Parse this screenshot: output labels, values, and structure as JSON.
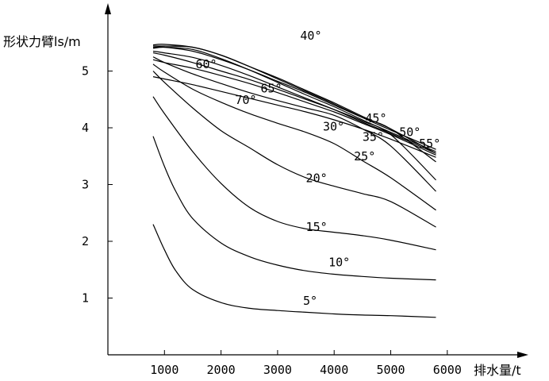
{
  "chart_data": {
    "type": "line",
    "xlabel": "排水量/t",
    "ylabel": "形状力臂ls/m",
    "xlim": [
      0,
      6600
    ],
    "ylim": [
      0,
      6.2
    ],
    "x_ticks": [
      "1000",
      "2000",
      "3000",
      "4000",
      "5000",
      "6000"
    ],
    "y_ticks": [
      "1",
      "2",
      "3",
      "4",
      "5"
    ],
    "grid": false,
    "series": [
      {
        "name": "5°",
        "x": [
          800,
          1000,
          1200,
          1500,
          2000,
          2500,
          3000,
          3500,
          4000,
          4500,
          5000,
          5800
        ],
        "y": [
          2.3,
          1.85,
          1.48,
          1.15,
          0.92,
          0.82,
          0.78,
          0.75,
          0.72,
          0.7,
          0.69,
          0.66
        ]
      },
      {
        "name": "10°",
        "x": [
          800,
          1000,
          1200,
          1500,
          2000,
          2500,
          3000,
          3500,
          4000,
          4500,
          5000,
          5800
        ],
        "y": [
          3.85,
          3.32,
          2.88,
          2.4,
          1.97,
          1.73,
          1.58,
          1.48,
          1.42,
          1.38,
          1.35,
          1.32
        ]
      },
      {
        "name": "15°",
        "x": [
          800,
          1000,
          1500,
          2000,
          2500,
          3000,
          3500,
          4000,
          4500,
          5000,
          5800
        ],
        "y": [
          4.55,
          4.25,
          3.58,
          3.02,
          2.6,
          2.35,
          2.22,
          2.16,
          2.1,
          2.02,
          1.85
        ]
      },
      {
        "name": "20°",
        "x": [
          800,
          1000,
          1500,
          2000,
          2500,
          3000,
          3500,
          4000,
          4500,
          5000,
          5800
        ],
        "y": [
          5.0,
          4.8,
          4.35,
          3.95,
          3.65,
          3.35,
          3.12,
          2.97,
          2.84,
          2.7,
          2.25
        ]
      },
      {
        "name": "25°",
        "x": [
          800,
          1000,
          1500,
          2000,
          2500,
          3000,
          3500,
          4000,
          4500,
          5000,
          5800
        ],
        "y": [
          5.12,
          4.98,
          4.68,
          4.45,
          4.25,
          4.08,
          3.92,
          3.72,
          3.42,
          3.12,
          2.55
        ]
      },
      {
        "name": "30°",
        "x": [
          800,
          1000,
          1500,
          2000,
          2500,
          3000,
          3500,
          4000,
          4500,
          5000,
          5800
        ],
        "y": [
          5.25,
          5.15,
          4.95,
          4.78,
          4.62,
          4.48,
          4.35,
          4.22,
          3.98,
          3.68,
          2.88
        ]
      },
      {
        "name": "35°",
        "x": [
          800,
          1000,
          1500,
          2000,
          2500,
          3000,
          3500,
          4000,
          4500,
          5000,
          5800
        ],
        "y": [
          5.32,
          5.28,
          5.15,
          5.0,
          4.85,
          4.68,
          4.5,
          4.32,
          4.12,
          3.88,
          3.08
        ]
      },
      {
        "name": "40°",
        "x": [
          800,
          1000,
          1500,
          2000,
          2500,
          3000,
          3500,
          4000,
          4500,
          5000,
          5800
        ],
        "y": [
          5.42,
          5.42,
          5.35,
          5.2,
          5.02,
          4.82,
          4.62,
          4.4,
          4.18,
          3.98,
          3.4
        ]
      },
      {
        "name": "45°",
        "x": [
          800,
          1000,
          1500,
          2000,
          2500,
          3000,
          3500,
          4000,
          4500,
          5000,
          5800
        ],
        "y": [
          5.46,
          5.47,
          5.42,
          5.28,
          5.08,
          4.88,
          4.66,
          4.44,
          4.2,
          3.98,
          3.55
        ]
      },
      {
        "name": "50°",
        "x": [
          800,
          1000,
          1500,
          2000,
          2500,
          3000,
          3500,
          4000,
          4500,
          5000,
          5800
        ],
        "y": [
          5.44,
          5.44,
          5.42,
          5.28,
          5.08,
          4.86,
          4.64,
          4.42,
          4.18,
          3.96,
          3.62
        ]
      },
      {
        "name": "55°",
        "x": [
          800,
          1000,
          1500,
          2000,
          2500,
          3000,
          3500,
          4000,
          4500,
          5000,
          5800
        ],
        "y": [
          5.4,
          5.42,
          5.38,
          5.22,
          5.02,
          4.8,
          4.58,
          4.37,
          4.14,
          3.92,
          3.58
        ]
      },
      {
        "name": "60°",
        "x": [
          800,
          1000,
          1500,
          2000,
          2500,
          3000,
          3500,
          4000,
          4500,
          5000,
          5800
        ],
        "y": [
          5.35,
          5.32,
          5.24,
          5.1,
          4.92,
          4.72,
          4.52,
          4.32,
          4.1,
          3.9,
          3.55
        ]
      },
      {
        "name": "65°",
        "x": [
          800,
          1000,
          1500,
          2000,
          2500,
          3000,
          3500,
          4000,
          4500,
          5000,
          5800
        ],
        "y": [
          5.2,
          5.15,
          5.05,
          4.92,
          4.78,
          4.62,
          4.45,
          4.28,
          4.08,
          3.88,
          3.52
        ]
      },
      {
        "name": "70°",
        "x": [
          800,
          1000,
          1500,
          2000,
          2500,
          3000,
          3500,
          4000,
          4500,
          5000,
          5800
        ],
        "y": [
          4.9,
          4.86,
          4.76,
          4.64,
          4.52,
          4.4,
          4.28,
          4.14,
          3.98,
          3.8,
          3.48
        ]
      }
    ],
    "annotations": [
      {
        "text": "5°",
        "x": 3450,
        "y": 0.88
      },
      {
        "text": "10°",
        "x": 3900,
        "y": 1.56
      },
      {
        "text": "15°",
        "x": 3500,
        "y": 2.18
      },
      {
        "text": "20°",
        "x": 3500,
        "y": 3.04
      },
      {
        "text": "25°",
        "x": 4350,
        "y": 3.43
      },
      {
        "text": "30°",
        "x": 3800,
        "y": 3.95
      },
      {
        "text": "35°",
        "x": 4500,
        "y": 3.77
      },
      {
        "text": "40°",
        "x": 3400,
        "y": 5.55
      },
      {
        "text": "45°",
        "x": 4550,
        "y": 4.1
      },
      {
        "text": "50°",
        "x": 5150,
        "y": 3.85
      },
      {
        "text": "55°",
        "x": 5500,
        "y": 3.65
      },
      {
        "text": "60°",
        "x": 1550,
        "y": 5.05
      },
      {
        "text": "65°",
        "x": 2700,
        "y": 4.62
      },
      {
        "text": "70°",
        "x": 2250,
        "y": 4.42
      }
    ]
  }
}
